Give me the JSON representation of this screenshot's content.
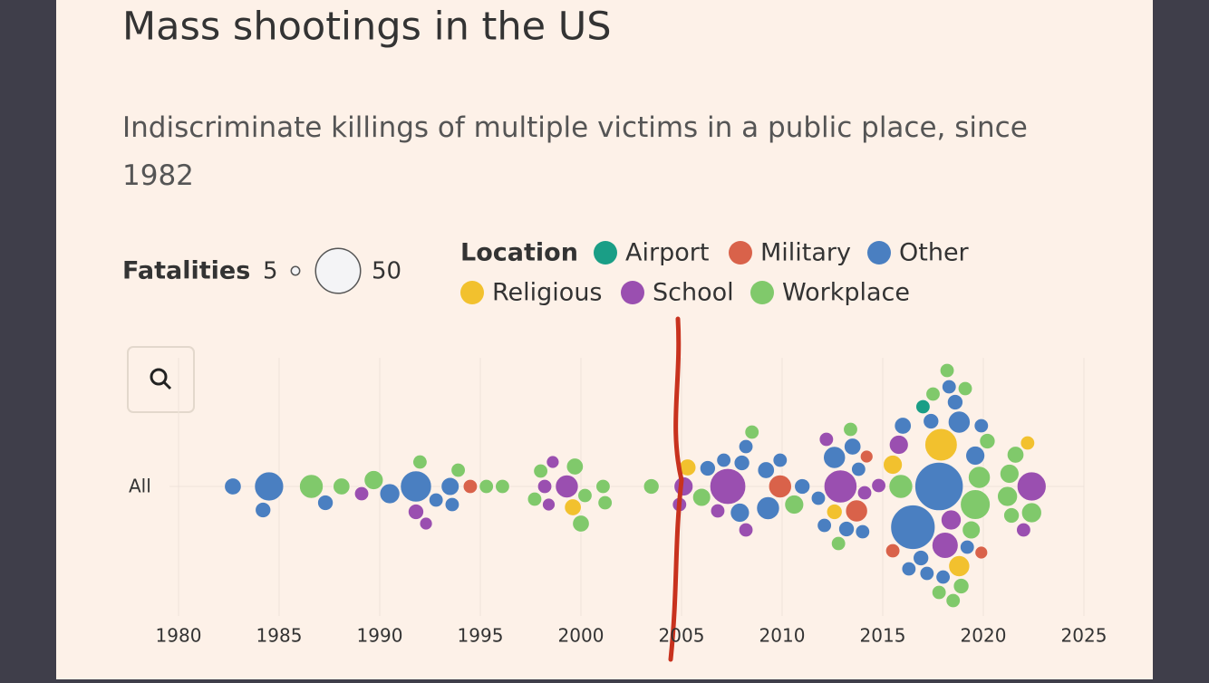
{
  "chart_data": {
    "type": "beeswarm",
    "title": "Mass shootings in the US",
    "subtitle": "Indiscriminate killings of multiple victims in a public place, since 1982",
    "size_legend": {
      "title": "Fatalities",
      "values": [
        5,
        50
      ]
    },
    "color_legend_title": "Location",
    "row_label": "All",
    "xlim": [
      1980,
      2025
    ],
    "xticks": [
      1980,
      1985,
      1990,
      1995,
      2000,
      2005,
      2010,
      2015,
      2020,
      2025
    ],
    "grid": true,
    "series": [
      {
        "name": "Airport",
        "color": "#1a9e86",
        "x": [
          2017.0
        ],
        "values": [
          5
        ]
      },
      {
        "name": "Military",
        "color": "#d9624a",
        "x": [
          1994.5,
          2009.9,
          2013.7,
          2014.2,
          2015.5,
          2019.9
        ],
        "values": [
          5,
          13,
          12,
          4,
          5,
          4
        ]
      },
      {
        "name": "Other",
        "color": "#4a7fc1",
        "x": [
          1982.7,
          1984.2,
          1984.5,
          1987.3,
          1990.5,
          1991.8,
          1992.8,
          1993.5,
          1993.6,
          2006.3,
          2007.1,
          2007.9,
          2008.0,
          2008.2,
          2009.2,
          2009.3,
          2009.9,
          2011.0,
          2011.8,
          2012.1,
          2012.6,
          2013.2,
          2013.5,
          2013.8,
          2014.0,
          2016.0,
          2016.3,
          2016.5,
          2017.4,
          2017.8,
          2018.0,
          2018.6,
          2018.8,
          2019.2,
          2019.6,
          2019.9,
          2017.2,
          2018.3,
          2016.9
        ],
        "values": [
          7,
          6,
          21,
          6,
          10,
          24,
          5,
          8,
          5,
          6,
          5,
          9,
          6,
          5,
          7,
          13,
          5,
          6,
          5,
          5,
          12,
          6,
          7,
          5,
          5,
          7,
          5,
          49,
          6,
          58,
          5,
          6,
          12,
          5,
          9,
          5,
          5,
          5,
          6
        ]
      },
      {
        "name": "Religious",
        "color": "#f2c12e",
        "x": [
          1999.6,
          2005.3,
          2012.6,
          2015.5,
          2017.9,
          2018.8,
          2022.2
        ],
        "values": [
          7,
          7,
          6,
          9,
          26,
          11,
          5
        ]
      },
      {
        "name": "School",
        "color": "#9a4fb0",
        "x": [
          1989.1,
          1991.8,
          1992.3,
          1998.2,
          1998.4,
          1998.6,
          1999.3,
          2004.9,
          2005.1,
          2006.8,
          2007.3,
          2008.2,
          2012.2,
          2012.9,
          2014.1,
          2014.8,
          2015.8,
          2018.1,
          2018.4,
          2022.0,
          2022.4
        ],
        "values": [
          5,
          6,
          4,
          5,
          4,
          4,
          13,
          5,
          9,
          5,
          32,
          5,
          5,
          27,
          5,
          5,
          9,
          17,
          10,
          5,
          21
        ]
      },
      {
        "name": "Workplace",
        "color": "#80c96b",
        "x": [
          1986.6,
          1988.1,
          1989.7,
          1992.0,
          1993.9,
          1995.3,
          1996.1,
          1997.7,
          1998.0,
          1999.7,
          2000.0,
          2000.2,
          2001.1,
          2001.2,
          2003.5,
          2006.0,
          2008.5,
          2010.6,
          2012.8,
          2013.4,
          2015.9,
          2017.5,
          2017.8,
          2018.2,
          2018.5,
          2018.9,
          2019.1,
          2019.4,
          2019.6,
          2019.8,
          2020.2,
          2021.2,
          2021.3,
          2021.4,
          2021.6,
          2022.4
        ],
        "values": [
          14,
          7,
          9,
          5,
          5,
          5,
          5,
          5,
          5,
          7,
          7,
          5,
          5,
          5,
          6,
          8,
          5,
          9,
          5,
          5,
          14,
          5,
          5,
          5,
          5,
          6,
          5,
          8,
          22,
          12,
          6,
          10,
          9,
          6,
          7,
          10
        ]
      }
    ]
  }
}
